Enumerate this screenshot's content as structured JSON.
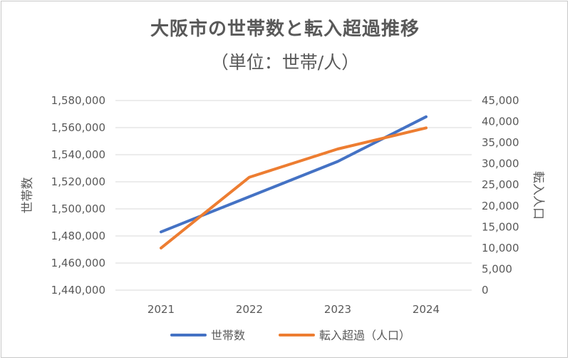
{
  "chart_data": {
    "type": "line",
    "title": "大阪市の世帯数と転入超過推移",
    "subtitle": "（単位：世帯/人）",
    "categories": [
      "2021",
      "2022",
      "2023",
      "2024"
    ],
    "series": [
      {
        "name": "世帯数",
        "axis": "left",
        "color": "#4472C4",
        "values": [
          1483000,
          1509000,
          1535000,
          1568000
        ]
      },
      {
        "name": "転入超過（人口）",
        "axis": "right",
        "color": "#ED7D31",
        "values": [
          10000,
          26800,
          33500,
          38500
        ]
      }
    ],
    "left_axis": {
      "title": "世帯数",
      "min": 1440000,
      "max": 1580000,
      "ticks": [
        "1,440,000",
        "1,460,000",
        "1,480,000",
        "1,500,000",
        "1,520,000",
        "1,540,000",
        "1,560,000",
        "1,580,000"
      ]
    },
    "right_axis": {
      "title": "転入人口",
      "min": 0,
      "max": 45000,
      "ticks": [
        "0",
        "5,000",
        "10,000",
        "15,000",
        "20,000",
        "25,000",
        "30,000",
        "35,000",
        "40,000",
        "45,000"
      ]
    },
    "grid": "horizontal",
    "legend": "bottom"
  }
}
